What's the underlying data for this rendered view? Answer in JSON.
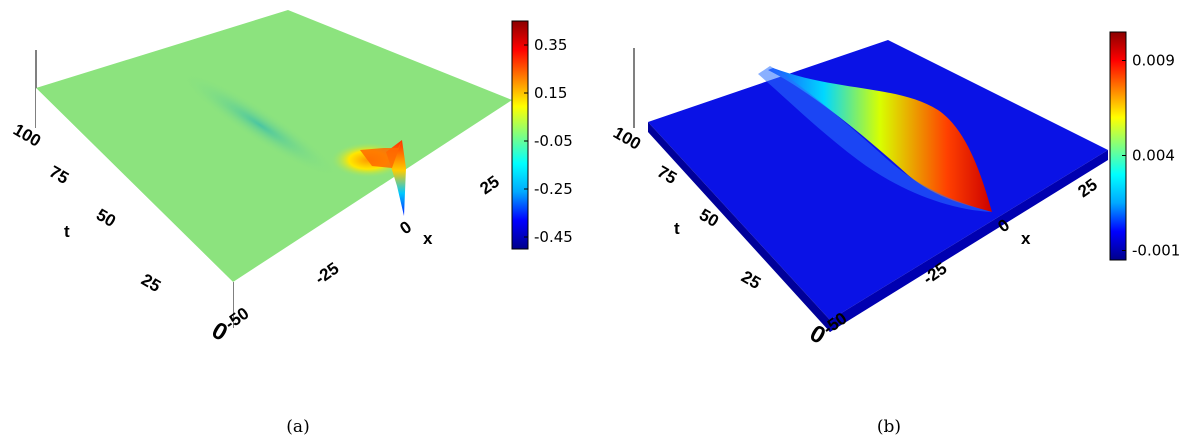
{
  "chart_data": [
    {
      "type": "surface",
      "caption": "(a)",
      "xlabel": "x",
      "ylabel": "t",
      "x_ticks": [
        "-50",
        "-25",
        "0",
        "25"
      ],
      "t_ticks": [
        "0",
        "25",
        "50",
        "75",
        "100"
      ],
      "xlim": [
        -50,
        50
      ],
      "tlim": [
        0,
        100
      ],
      "colorbar": {
        "ticks": [
          "0.35",
          "0.15",
          "-0.05",
          "-0.25",
          "-0.45"
        ],
        "range": [
          -0.5,
          0.45
        ],
        "colormap": [
          "#00008b",
          "#0000ff",
          "#00a8ff",
          "#00ffff",
          "#80ff80",
          "#ffff00",
          "#ff8000",
          "#ff0000",
          "#8b0000"
        ]
      },
      "surface": {
        "baseline_value": 0.0,
        "feature": "localized wave near x≈0, t≈0 with peak ≈0.4 and trough ≈-0.45, weak depression trailing toward x<0 as t increases",
        "peak_value": 0.4,
        "trough_value": -0.45
      }
    },
    {
      "type": "surface",
      "caption": "(b)",
      "xlabel": "x",
      "ylabel": "t",
      "x_ticks": [
        "-50",
        "-25",
        "0",
        "25"
      ],
      "t_ticks": [
        "0",
        "25",
        "50",
        "75",
        "100"
      ],
      "xlim": [
        -50,
        50
      ],
      "tlim": [
        0,
        100
      ],
      "colorbar": {
        "ticks": [
          "0.009",
          "0.004",
          "-0.001"
        ],
        "range": [
          -0.0015,
          0.0105
        ],
        "colormap": [
          "#00008b",
          "#0000ff",
          "#00a8ff",
          "#00ffff",
          "#80ff80",
          "#ffff00",
          "#ff8000",
          "#ff0000",
          "#8b0000"
        ]
      },
      "surface": {
        "baseline_value": 0.0,
        "feature": "single ridge crossing the domain diagonally from x≈0,t≈0 toward x≈-40,t≈100, max ≈0.01 near x≈0",
        "peak_value": 0.01
      }
    }
  ]
}
